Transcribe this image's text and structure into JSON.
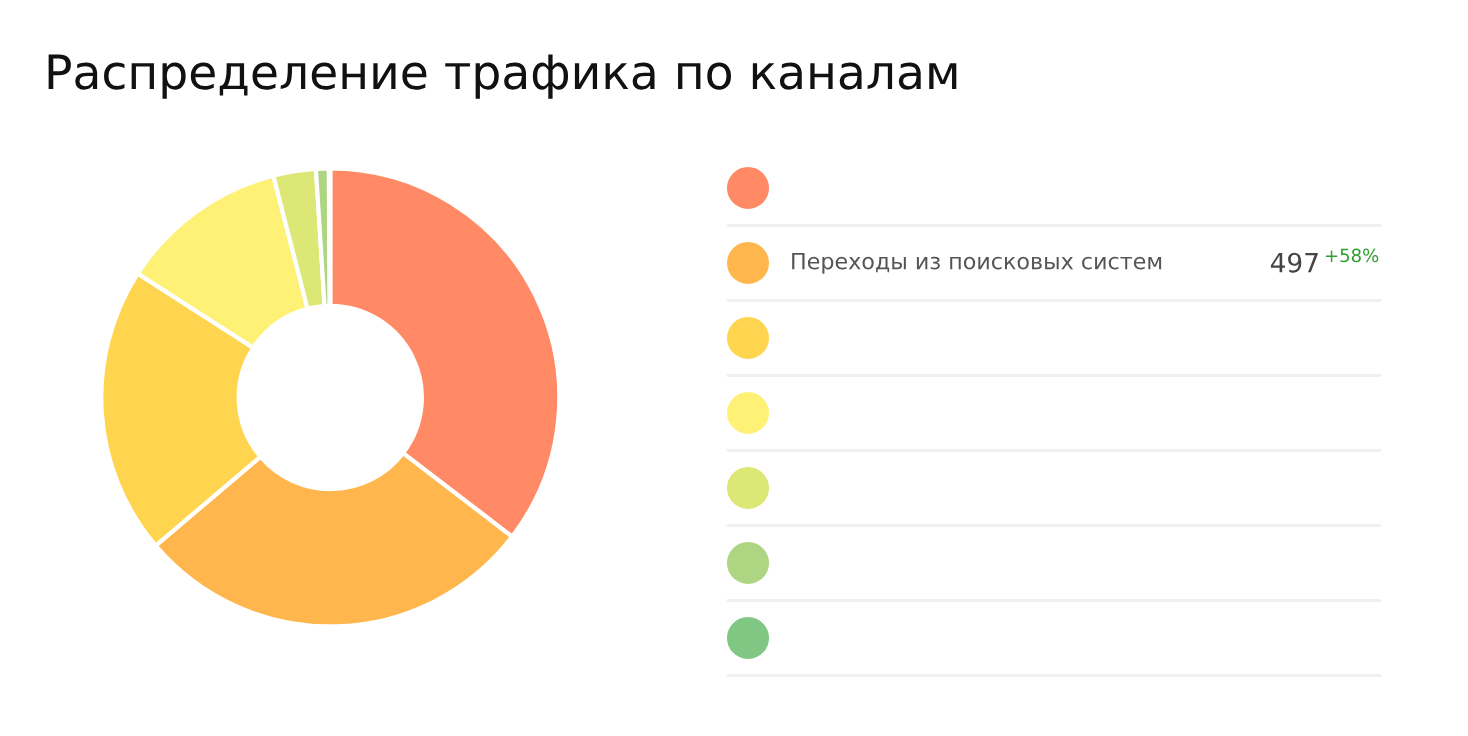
{
  "chart_data": {
    "type": "donut",
    "title": "Распределение трафика по каналам",
    "categories": [
      null,
      "Переходы из поисковых систем",
      null,
      null,
      null,
      null,
      null
    ],
    "values": [
      35.4,
      28.4,
      20.3,
      11.9,
      3.0,
      0.9,
      0.1
    ],
    "colors": [
      "#ff8a65",
      "#ffb74d",
      "#ffd54f",
      "#fff176",
      "#dce775",
      "#aed581",
      "#81c784"
    ],
    "legend": "right",
    "annotations": [
      "497",
      "+58%"
    ]
  }
}
